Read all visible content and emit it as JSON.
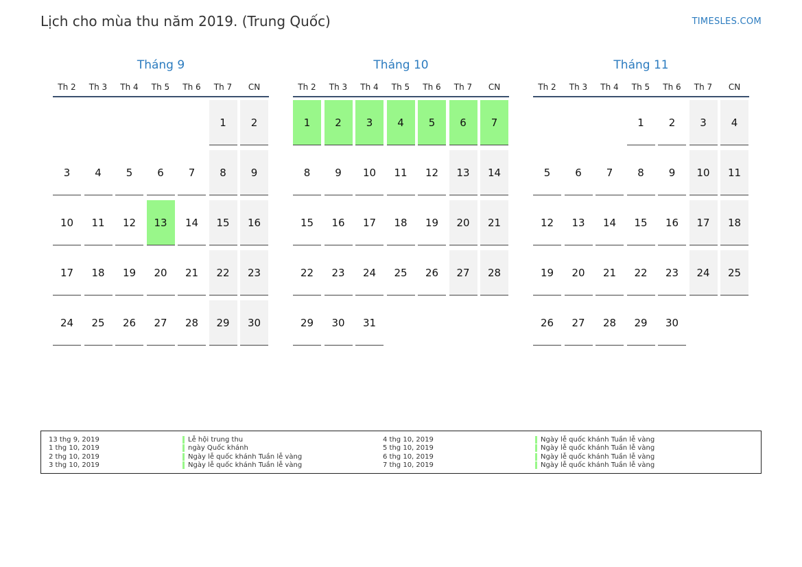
{
  "title": "Lịch cho mùa thu năm 2019. (Trung Quốc)",
  "site": "TIMESLES.COM",
  "colors": {
    "accent": "#2b7bbf",
    "holiday": "#99f78a",
    "weekend": "#f2f2f2",
    "rule": "#3a4f6e"
  },
  "weekdays": [
    "Th 2",
    "Th 3",
    "Th 4",
    "Th 5",
    "Th 6",
    "Th 7",
    "CN"
  ],
  "months": [
    {
      "name": "Tháng 9",
      "start_weekday": 6,
      "days": 30,
      "holidays": [
        13
      ]
    },
    {
      "name": "Tháng 10",
      "start_weekday": 1,
      "days": 31,
      "holidays": [
        1,
        2,
        3,
        4,
        5,
        6,
        7
      ]
    },
    {
      "name": "Tháng 11",
      "start_weekday": 4,
      "days": 30,
      "holidays": []
    }
  ],
  "legend": [
    {
      "date": "13 thg 9, 2019",
      "name": "Lễ hội trung thu"
    },
    {
      "date": "1 thg 10, 2019",
      "name": "ngày Quốc khánh"
    },
    {
      "date": "2 thg 10, 2019",
      "name": "Ngày lễ quốc khánh Tuần lễ vàng"
    },
    {
      "date": "3 thg 10, 2019",
      "name": "Ngày lễ quốc khánh Tuần lễ vàng"
    },
    {
      "date": "4 thg 10, 2019",
      "name": "Ngày lễ quốc khánh Tuần lễ vàng"
    },
    {
      "date": "5 thg 10, 2019",
      "name": "Ngày lễ quốc khánh Tuần lễ vàng"
    },
    {
      "date": "6 thg 10, 2019",
      "name": "Ngày lễ quốc khánh Tuần lễ vàng"
    },
    {
      "date": "7 thg 10, 2019",
      "name": "Ngày lễ quốc khánh Tuần lễ vàng"
    }
  ]
}
